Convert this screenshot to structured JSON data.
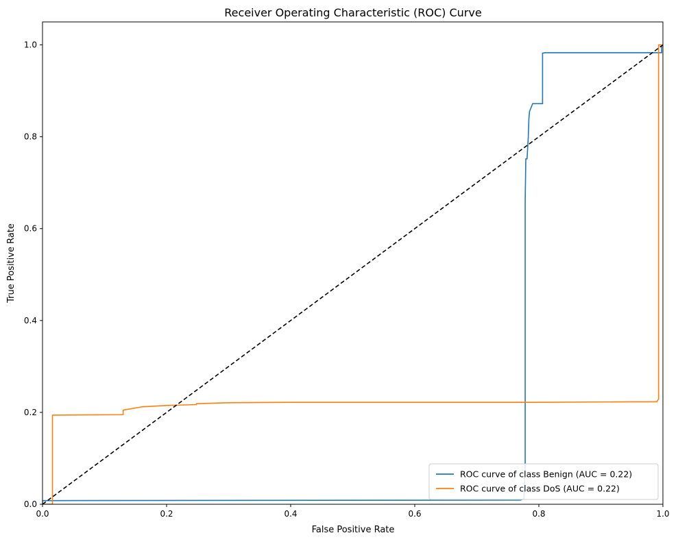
{
  "chart_data": {
    "type": "line",
    "title": "Receiver Operating Characteristic (ROC) Curve",
    "xlabel": "False Positive Rate",
    "ylabel": "True Positive Rate",
    "xlim": [
      0.0,
      1.0
    ],
    "ylim": [
      0.0,
      1.05
    ],
    "xticks": [
      "0.0",
      "0.2",
      "0.4",
      "0.6",
      "0.8",
      "1.0"
    ],
    "yticks": [
      "0.0",
      "0.2",
      "0.4",
      "0.6",
      "0.8",
      "1.0"
    ],
    "xtick_values": [
      0.0,
      0.2,
      0.4,
      0.6,
      0.8,
      1.0
    ],
    "ytick_values": [
      0.0,
      0.2,
      0.4,
      0.6,
      0.8,
      1.0
    ],
    "grid": false,
    "legend_position": "lower-right",
    "series": [
      {
        "name": "ROC curve of class Benign (AUC = 0.22)",
        "color": "#1f77b4",
        "x": [
          0.0,
          0.0,
          0.77,
          0.776,
          0.778,
          0.778,
          0.779,
          0.781,
          0.783,
          0.784,
          0.785,
          0.79,
          0.8,
          0.806,
          0.806,
          0.81,
          0.998,
          0.998,
          1.0
        ],
        "y": [
          0.0,
          0.008,
          0.009,
          0.012,
          0.08,
          0.66,
          0.752,
          0.752,
          0.8,
          0.84,
          0.855,
          0.872,
          0.872,
          0.872,
          0.982,
          0.983,
          0.983,
          0.998,
          1.0
        ]
      },
      {
        "name": "ROC curve of class DoS (AUC = 0.22)",
        "color": "#ff7f0e",
        "x": [
          0.0,
          0.016,
          0.016,
          0.13,
          0.13,
          0.16,
          0.2,
          0.248,
          0.248,
          0.3,
          0.4,
          0.6,
          0.8,
          0.95,
          0.99,
          0.993,
          0.993,
          1.0
        ],
        "y": [
          0.0,
          0.0,
          0.194,
          0.195,
          0.205,
          0.212,
          0.215,
          0.217,
          0.219,
          0.221,
          0.222,
          0.222,
          0.222,
          0.223,
          0.223,
          0.229,
          1.0,
          1.0
        ]
      },
      {
        "style": "dashed",
        "color": "#000000",
        "x": [
          0.0,
          1.0
        ],
        "y": [
          0.0,
          1.0
        ]
      }
    ]
  }
}
